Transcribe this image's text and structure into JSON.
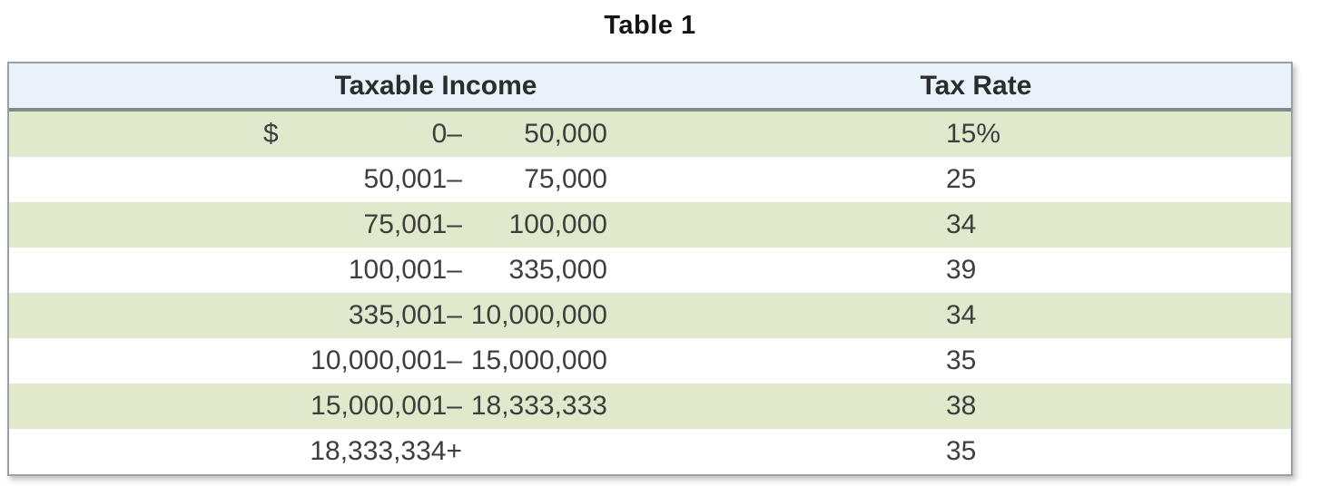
{
  "title": "Table 1",
  "table": {
    "headers": {
      "income": "Taxable Income",
      "rate": "Tax Rate"
    },
    "rows": [
      {
        "dollar": "$",
        "lower": "0–",
        "upper": "50,000",
        "rate": "15%"
      },
      {
        "dollar": "",
        "lower": "50,001–",
        "upper": "75,000",
        "rate": "25"
      },
      {
        "dollar": "",
        "lower": "75,001–",
        "upper": "100,000",
        "rate": "34"
      },
      {
        "dollar": "",
        "lower": "100,001–",
        "upper": "335,000",
        "rate": "39"
      },
      {
        "dollar": "",
        "lower": "335,001–",
        "upper": "10,000,000",
        "rate": "34"
      },
      {
        "dollar": "",
        "lower": "10,000,001–",
        "upper": "15,000,000",
        "rate": "35"
      },
      {
        "dollar": "",
        "lower": "15,000,001–",
        "upper": "18,333,333",
        "rate": "38"
      },
      {
        "dollar": "",
        "lower": "18,333,334+",
        "upper": "",
        "rate": "35"
      }
    ]
  },
  "chart_data": {
    "type": "table",
    "title": "Table 1",
    "columns": [
      "Taxable Income",
      "Tax Rate"
    ],
    "rows": [
      [
        "$ 0– 50,000",
        "15%"
      ],
      [
        "50,001– 75,000",
        "25"
      ],
      [
        "75,001– 100,000",
        "34"
      ],
      [
        "100,001– 335,000",
        "39"
      ],
      [
        "335,001–10,000,000",
        "34"
      ],
      [
        "10,000,001–15,000,000",
        "35"
      ],
      [
        "15,000,001–18,333,333",
        "38"
      ],
      [
        "18,333,334+",
        "35"
      ]
    ]
  },
  "colors": {
    "header_bg": "#e9f2fa",
    "row_alt_bg": "#e0e9cc",
    "row_bg": "#ffffff",
    "border": "#9ba1a5",
    "header_divider": "#82898a",
    "text": "#3d3f3e"
  }
}
